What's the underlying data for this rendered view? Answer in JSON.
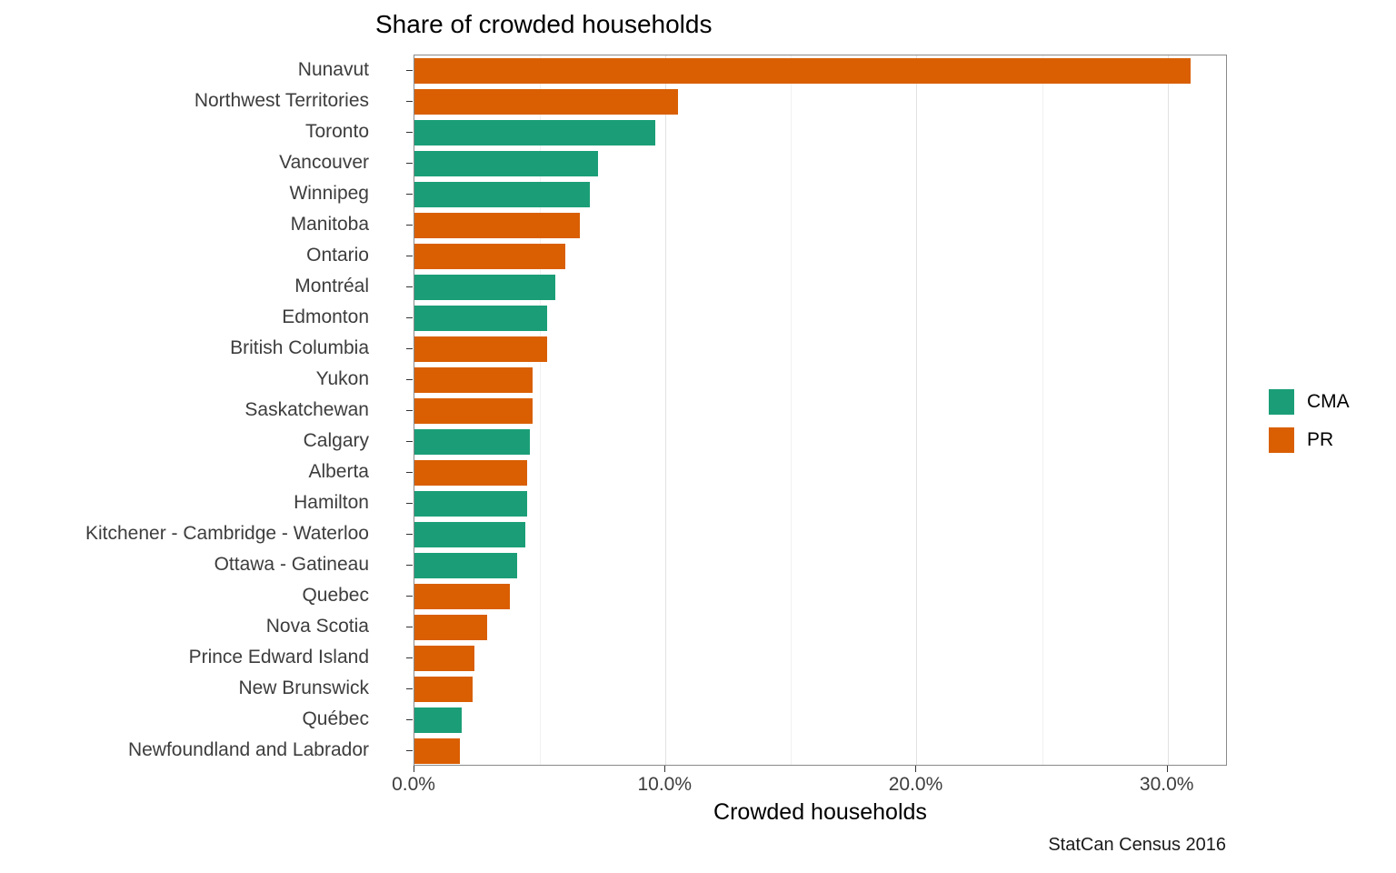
{
  "colors": {
    "CMA": "#1B9E77",
    "PR": "#D95F02"
  },
  "legend": {
    "items": [
      {
        "label": "CMA",
        "group": "CMA"
      },
      {
        "label": "PR",
        "group": "PR"
      }
    ]
  },
  "chart_data": {
    "type": "bar",
    "orientation": "horizontal",
    "title": "Share of crowded households",
    "xlabel": "Crowded households",
    "ylabel": "",
    "caption": "StatCan Census 2016",
    "xlim": [
      0,
      32.4
    ],
    "grid": "major-minor",
    "legend_position": "right",
    "x_major_ticks": [
      {
        "value": 0,
        "label": "0.0%"
      },
      {
        "value": 10,
        "label": "10.0%"
      },
      {
        "value": 20,
        "label": "20.0%"
      },
      {
        "value": 30,
        "label": "30.0%"
      }
    ],
    "x_minor_gridlines": [
      5,
      15,
      25
    ],
    "bars": [
      {
        "label": "Nunavut",
        "group": "PR",
        "value": 30.9
      },
      {
        "label": "Northwest Territories",
        "group": "PR",
        "value": 10.5
      },
      {
        "label": "Toronto",
        "group": "CMA",
        "value": 9.6
      },
      {
        "label": "Vancouver",
        "group": "CMA",
        "value": 7.3
      },
      {
        "label": "Winnipeg",
        "group": "CMA",
        "value": 7.0
      },
      {
        "label": "Manitoba",
        "group": "PR",
        "value": 6.6
      },
      {
        "label": "Ontario",
        "group": "PR",
        "value": 6.0
      },
      {
        "label": "Montréal",
        "group": "CMA",
        "value": 5.6
      },
      {
        "label": "Edmonton",
        "group": "CMA",
        "value": 5.3
      },
      {
        "label": "British Columbia",
        "group": "PR",
        "value": 5.3
      },
      {
        "label": "Yukon",
        "group": "PR",
        "value": 4.7
      },
      {
        "label": "Saskatchewan",
        "group": "PR",
        "value": 4.7
      },
      {
        "label": "Calgary",
        "group": "CMA",
        "value": 4.6
      },
      {
        "label": "Alberta",
        "group": "PR",
        "value": 4.5
      },
      {
        "label": "Hamilton",
        "group": "CMA",
        "value": 4.5
      },
      {
        "label": "Kitchener - Cambridge - Waterloo",
        "group": "CMA",
        "value": 4.4
      },
      {
        "label": "Ottawa - Gatineau",
        "group": "CMA",
        "value": 4.1
      },
      {
        "label": "Quebec",
        "group": "PR",
        "value": 3.8
      },
      {
        "label": "Nova Scotia",
        "group": "PR",
        "value": 2.9
      },
      {
        "label": "Prince Edward Island",
        "group": "PR",
        "value": 2.4
      },
      {
        "label": "New Brunswick",
        "group": "PR",
        "value": 2.3
      },
      {
        "label": "Québec",
        "group": "CMA",
        "value": 1.9
      },
      {
        "label": "Newfoundland and Labrador",
        "group": "PR",
        "value": 1.8
      }
    ]
  }
}
